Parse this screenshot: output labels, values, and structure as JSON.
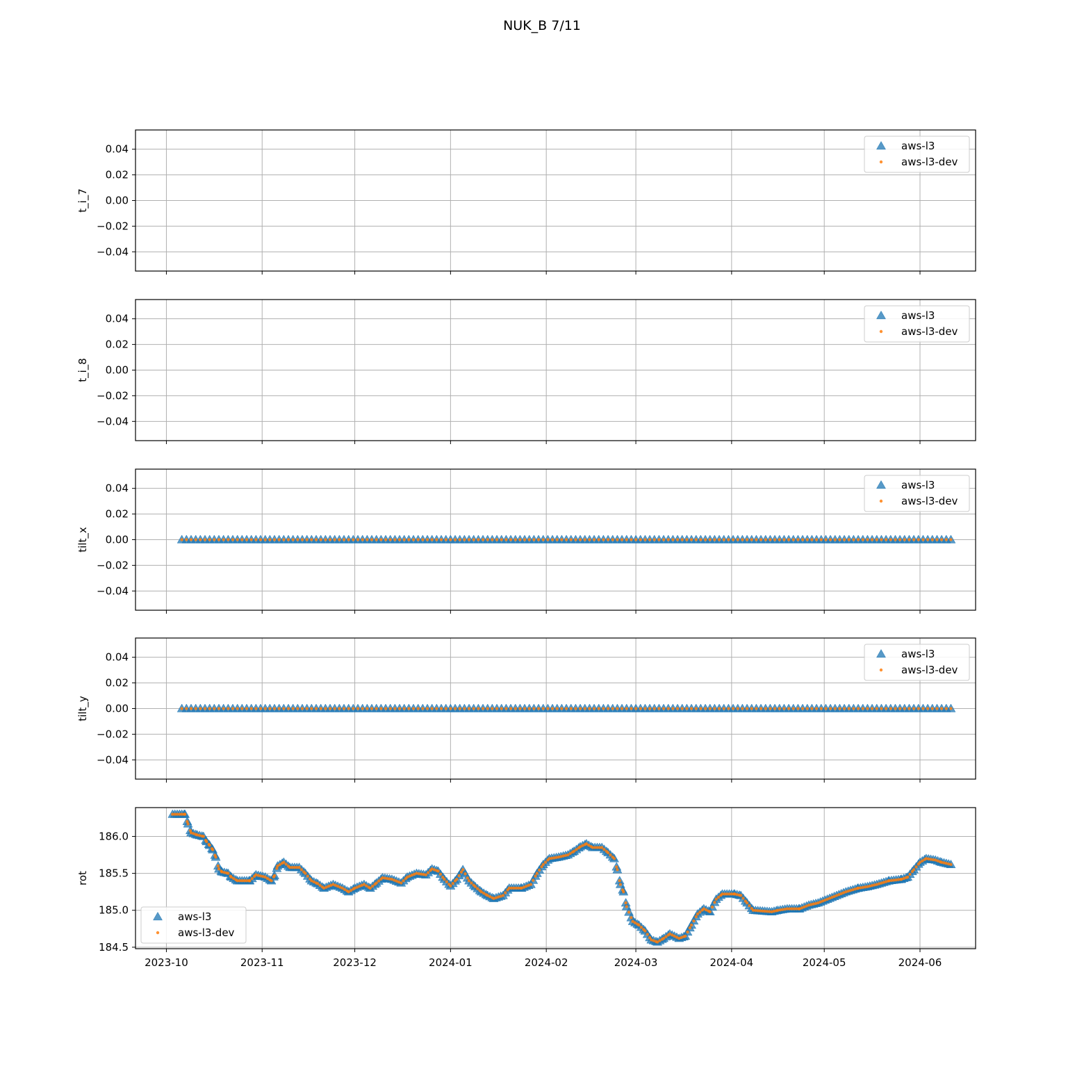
{
  "figure": {
    "title": "NUK_B 7/11"
  },
  "colors": {
    "aws_l3": "#1f77b4",
    "aws_l3_dev": "#ff7f0e",
    "grid": "#b0b0b0"
  },
  "chart_data": [
    {
      "type": "scatter",
      "ylabel": "t_i_7",
      "ylim": [
        -0.055,
        0.055
      ],
      "yticks": [
        "0.04",
        "0.02",
        "0.00",
        "−0.02",
        "−0.04"
      ],
      "ytick_values": [
        0.04,
        0.02,
        0.0,
        -0.02,
        -0.04
      ],
      "xlim": [
        "2023-09-21",
        "2024-06-19"
      ],
      "xticks": [
        "2023-10",
        "2023-11",
        "2023-12",
        "2024-01",
        "2024-02",
        "2024-03",
        "2024-04",
        "2024-05",
        "2024-06"
      ],
      "grid": true,
      "legend_loc": "upper right",
      "series": [
        {
          "name": "aws-l3",
          "marker": "triangle",
          "points": []
        },
        {
          "name": "aws-l3-dev",
          "marker": "dot",
          "points": []
        }
      ]
    },
    {
      "type": "scatter",
      "ylabel": "t_i_8",
      "ylim": [
        -0.055,
        0.055
      ],
      "yticks": [
        "0.04",
        "0.02",
        "0.00",
        "−0.02",
        "−0.04"
      ],
      "ytick_values": [
        0.04,
        0.02,
        0.0,
        -0.02,
        -0.04
      ],
      "xlim": [
        "2023-09-21",
        "2024-06-19"
      ],
      "xticks": [
        "2023-10",
        "2023-11",
        "2023-12",
        "2024-01",
        "2024-02",
        "2024-03",
        "2024-04",
        "2024-05",
        "2024-06"
      ],
      "grid": true,
      "legend_loc": "upper right",
      "series": [
        {
          "name": "aws-l3",
          "marker": "triangle",
          "points": []
        },
        {
          "name": "aws-l3-dev",
          "marker": "dot",
          "points": []
        }
      ]
    },
    {
      "type": "scatter",
      "ylabel": "tilt_x",
      "ylim": [
        -0.055,
        0.055
      ],
      "yticks": [
        "0.04",
        "0.02",
        "0.00",
        "−0.02",
        "−0.04"
      ],
      "ytick_values": [
        0.04,
        0.02,
        0.0,
        -0.02,
        -0.04
      ],
      "xlim": [
        "2023-09-21",
        "2024-06-19"
      ],
      "xticks": [
        "2023-10",
        "2023-11",
        "2023-12",
        "2024-01",
        "2024-02",
        "2024-03",
        "2024-04",
        "2024-05",
        "2024-06"
      ],
      "grid": true,
      "legend_loc": "upper right",
      "series": [
        {
          "name": "aws-l3",
          "marker": "triangle",
          "x_range": [
            "2023-10-06",
            "2024-06-11"
          ],
          "constant_y": 0.0
        },
        {
          "name": "aws-l3-dev",
          "marker": "dot",
          "x_range": [
            "2023-10-06",
            "2024-06-11"
          ],
          "constant_y": 0.0
        }
      ]
    },
    {
      "type": "scatter",
      "ylabel": "tilt_y",
      "ylim": [
        -0.055,
        0.055
      ],
      "yticks": [
        "0.04",
        "0.02",
        "0.00",
        "−0.02",
        "−0.04"
      ],
      "ytick_values": [
        0.04,
        0.02,
        0.0,
        -0.02,
        -0.04
      ],
      "xlim": [
        "2023-09-21",
        "2024-06-19"
      ],
      "xticks": [
        "2023-10",
        "2023-11",
        "2023-12",
        "2024-01",
        "2024-02",
        "2024-03",
        "2024-04",
        "2024-05",
        "2024-06"
      ],
      "grid": true,
      "legend_loc": "upper right",
      "series": [
        {
          "name": "aws-l3",
          "marker": "triangle",
          "x_range": [
            "2023-10-06",
            "2024-06-11"
          ],
          "constant_y": 0.0
        },
        {
          "name": "aws-l3-dev",
          "marker": "dot",
          "x_range": [
            "2023-10-06",
            "2024-06-11"
          ],
          "constant_y": 0.0
        }
      ]
    },
    {
      "type": "scatter",
      "ylabel": "rot",
      "ylim": [
        184.48,
        186.39
      ],
      "yticks": [
        "186.0",
        "185.5",
        "185.0",
        "184.5"
      ],
      "ytick_values": [
        186.0,
        185.5,
        185.0,
        184.5
      ],
      "xlim": [
        "2023-09-21",
        "2024-06-19"
      ],
      "xticks": [
        "2023-10",
        "2023-11",
        "2023-12",
        "2024-01",
        "2024-02",
        "2024-03",
        "2024-04",
        "2024-05",
        "2024-06"
      ],
      "grid": true,
      "legend_loc": "lower left",
      "series_names": [
        "aws-l3",
        "aws-l3-dev"
      ],
      "shared_points_note": "both series overlap",
      "points": [
        [
          "2023-10-03",
          186.3
        ],
        [
          "2023-10-07",
          186.3
        ],
        [
          "2023-10-08",
          186.17
        ],
        [
          "2023-10-09",
          186.05
        ],
        [
          "2023-10-11",
          186.02
        ],
        [
          "2023-10-13",
          186.0
        ],
        [
          "2023-10-14",
          185.93
        ],
        [
          "2023-10-15",
          185.88
        ],
        [
          "2023-10-16",
          185.82
        ],
        [
          "2023-10-17",
          185.72
        ],
        [
          "2023-10-18",
          185.56
        ],
        [
          "2023-10-19",
          185.52
        ],
        [
          "2023-10-21",
          185.5
        ],
        [
          "2023-10-22",
          185.45
        ],
        [
          "2023-10-24",
          185.4
        ],
        [
          "2023-10-28",
          185.4
        ],
        [
          "2023-10-30",
          185.48
        ],
        [
          "2023-11-02",
          185.45
        ],
        [
          "2023-11-04",
          185.4
        ],
        [
          "2023-11-05",
          185.47
        ],
        [
          "2023-11-06",
          185.6
        ],
        [
          "2023-11-08",
          185.65
        ],
        [
          "2023-11-10",
          185.58
        ],
        [
          "2023-11-13",
          185.58
        ],
        [
          "2023-11-15",
          185.5
        ],
        [
          "2023-11-17",
          185.4
        ],
        [
          "2023-11-19",
          185.36
        ],
        [
          "2023-11-21",
          185.3
        ],
        [
          "2023-11-24",
          185.35
        ],
        [
          "2023-11-27",
          185.3
        ],
        [
          "2023-11-29",
          185.25
        ],
        [
          "2023-12-01",
          185.3
        ],
        [
          "2023-12-04",
          185.35
        ],
        [
          "2023-12-06",
          185.3
        ],
        [
          "2023-12-08",
          185.37
        ],
        [
          "2023-12-10",
          185.44
        ],
        [
          "2023-12-13",
          185.42
        ],
        [
          "2023-12-16",
          185.37
        ],
        [
          "2023-12-18",
          185.45
        ],
        [
          "2023-12-21",
          185.5
        ],
        [
          "2023-12-24",
          185.48
        ],
        [
          "2023-12-26",
          185.56
        ],
        [
          "2023-12-28",
          185.53
        ],
        [
          "2023-12-30",
          185.42
        ],
        [
          "2024-01-01",
          185.33
        ],
        [
          "2024-01-03",
          185.42
        ],
        [
          "2024-01-05",
          185.55
        ],
        [
          "2024-01-07",
          185.4
        ],
        [
          "2024-01-09",
          185.32
        ],
        [
          "2024-01-11",
          185.25
        ],
        [
          "2024-01-13",
          185.2
        ],
        [
          "2024-01-15",
          185.16
        ],
        [
          "2024-01-18",
          185.2
        ],
        [
          "2024-01-20",
          185.3
        ],
        [
          "2024-01-24",
          185.3
        ],
        [
          "2024-01-27",
          185.35
        ],
        [
          "2024-01-29",
          185.5
        ],
        [
          "2024-01-31",
          185.62
        ],
        [
          "2024-02-02",
          185.7
        ],
        [
          "2024-02-05",
          185.72
        ],
        [
          "2024-02-08",
          185.75
        ],
        [
          "2024-02-10",
          185.8
        ],
        [
          "2024-02-12",
          185.86
        ],
        [
          "2024-02-14",
          185.9
        ],
        [
          "2024-02-16",
          185.85
        ],
        [
          "2024-02-19",
          185.85
        ],
        [
          "2024-02-21",
          185.78
        ],
        [
          "2024-02-23",
          185.7
        ],
        [
          "2024-02-24",
          185.55
        ],
        [
          "2024-02-25",
          185.35
        ],
        [
          "2024-02-26",
          185.25
        ],
        [
          "2024-02-27",
          185.05
        ],
        [
          "2024-02-29",
          184.85
        ],
        [
          "2024-03-02",
          184.8
        ],
        [
          "2024-03-04",
          184.72
        ],
        [
          "2024-03-06",
          184.6
        ],
        [
          "2024-03-08",
          184.57
        ],
        [
          "2024-03-10",
          184.62
        ],
        [
          "2024-03-12",
          184.68
        ],
        [
          "2024-03-15",
          184.62
        ],
        [
          "2024-03-17",
          184.65
        ],
        [
          "2024-03-19",
          184.8
        ],
        [
          "2024-03-21",
          184.95
        ],
        [
          "2024-03-23",
          185.02
        ],
        [
          "2024-03-25",
          184.98
        ],
        [
          "2024-03-27",
          185.15
        ],
        [
          "2024-03-29",
          185.22
        ],
        [
          "2024-04-02",
          185.22
        ],
        [
          "2024-04-04",
          185.2
        ],
        [
          "2024-04-06",
          185.1
        ],
        [
          "2024-04-08",
          185.0
        ],
        [
          "2024-04-11",
          184.99
        ],
        [
          "2024-04-14",
          184.98
        ],
        [
          "2024-04-16",
          185.0
        ],
        [
          "2024-04-19",
          185.02
        ],
        [
          "2024-04-23",
          185.02
        ],
        [
          "2024-04-26",
          185.07
        ],
        [
          "2024-04-29",
          185.1
        ],
        [
          "2024-05-02",
          185.15
        ],
        [
          "2024-05-05",
          185.2
        ],
        [
          "2024-05-08",
          185.25
        ],
        [
          "2024-05-12",
          185.3
        ],
        [
          "2024-05-15",
          185.32
        ],
        [
          "2024-05-18",
          185.35
        ],
        [
          "2024-05-22",
          185.4
        ],
        [
          "2024-05-26",
          185.42
        ],
        [
          "2024-05-28",
          185.45
        ],
        [
          "2024-05-30",
          185.55
        ],
        [
          "2024-06-01",
          185.65
        ],
        [
          "2024-06-03",
          185.7
        ],
        [
          "2024-06-06",
          185.68
        ],
        [
          "2024-06-08",
          185.65
        ],
        [
          "2024-06-11",
          185.62
        ]
      ]
    }
  ]
}
